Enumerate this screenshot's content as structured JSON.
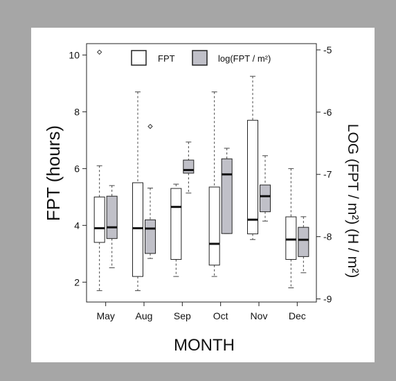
{
  "chart_data": {
    "type": "box",
    "title": "",
    "xlabel": "MONTH",
    "ylabel_left": "FPT (hours)",
    "ylabel_right": "LOG (FPT / m²) (H / m²)",
    "categories": [
      "May",
      "Aug",
      "Sep",
      "Oct",
      "Nov",
      "Dec"
    ],
    "ylim_left": [
      1.3,
      10.4
    ],
    "yticks_left": [
      "2",
      "4",
      "6",
      "8",
      "10"
    ],
    "ylim_right": [
      -9.05,
      -4.9
    ],
    "yticks_right": [
      "-9",
      "-8",
      "-7",
      "-6",
      "-5"
    ],
    "legend": {
      "position": "top-center",
      "entries": [
        "FPT",
        "log(FPT / m²)"
      ]
    },
    "grid": false,
    "colors": {
      "fpt_fill": "#ffffff",
      "log_fill": "#c0c0c8",
      "background": "#a6a6a6"
    },
    "series": [
      {
        "name": "FPT",
        "axis": "left",
        "boxes": [
          {
            "category": "May",
            "whisker_low": 1.7,
            "q1": 3.4,
            "median": 3.9,
            "q3": 5.0,
            "whisker_high": 6.1,
            "outliers": [
              10.1
            ]
          },
          {
            "category": "Aug",
            "whisker_low": 1.7,
            "q1": 2.2,
            "median": 3.9,
            "q3": 5.5,
            "whisker_high": 8.7,
            "outliers": []
          },
          {
            "category": "Sep",
            "whisker_low": 2.2,
            "q1": 2.8,
            "median": 4.65,
            "q3": 5.3,
            "whisker_high": 5.45,
            "outliers": []
          },
          {
            "category": "Oct",
            "whisker_low": 2.2,
            "q1": 2.6,
            "median": 3.35,
            "q3": 5.35,
            "whisker_high": 8.7,
            "outliers": []
          },
          {
            "category": "Nov",
            "whisker_low": 3.5,
            "q1": 3.7,
            "median": 4.2,
            "q3": 7.7,
            "whisker_high": 9.25,
            "outliers": []
          },
          {
            "category": "Dec",
            "whisker_low": 1.8,
            "q1": 2.8,
            "median": 3.5,
            "q3": 4.3,
            "whisker_high": 6.0,
            "outliers": []
          }
        ]
      },
      {
        "name": "log(FPT / m²)",
        "axis": "right",
        "boxes": [
          {
            "category": "May",
            "whisker_low": -8.5,
            "q1": -8.03,
            "median": -7.85,
            "q3": -7.35,
            "whisker_high": -7.18,
            "outliers": []
          },
          {
            "category": "Aug",
            "whisker_low": -8.35,
            "q1": -8.27,
            "median": -7.87,
            "q3": -7.73,
            "whisker_high": -7.22,
            "outliers": [
              -6.23
            ]
          },
          {
            "category": "Sep",
            "whisker_low": -7.3,
            "q1": -6.98,
            "median": -6.93,
            "q3": -6.77,
            "whisker_high": -6.48,
            "outliers": []
          },
          {
            "category": "Oct",
            "whisker_low": -7.95,
            "q1": -7.95,
            "median": -7.0,
            "q3": -6.75,
            "whisker_high": -6.58,
            "outliers": []
          },
          {
            "category": "Nov",
            "whisker_low": -7.75,
            "q1": -7.6,
            "median": -7.35,
            "q3": -7.17,
            "whisker_high": -6.7,
            "outliers": []
          },
          {
            "category": "Dec",
            "whisker_low": -8.58,
            "q1": -8.32,
            "median": -8.05,
            "q3": -7.85,
            "whisker_high": -7.68,
            "outliers": []
          }
        ]
      }
    ]
  }
}
